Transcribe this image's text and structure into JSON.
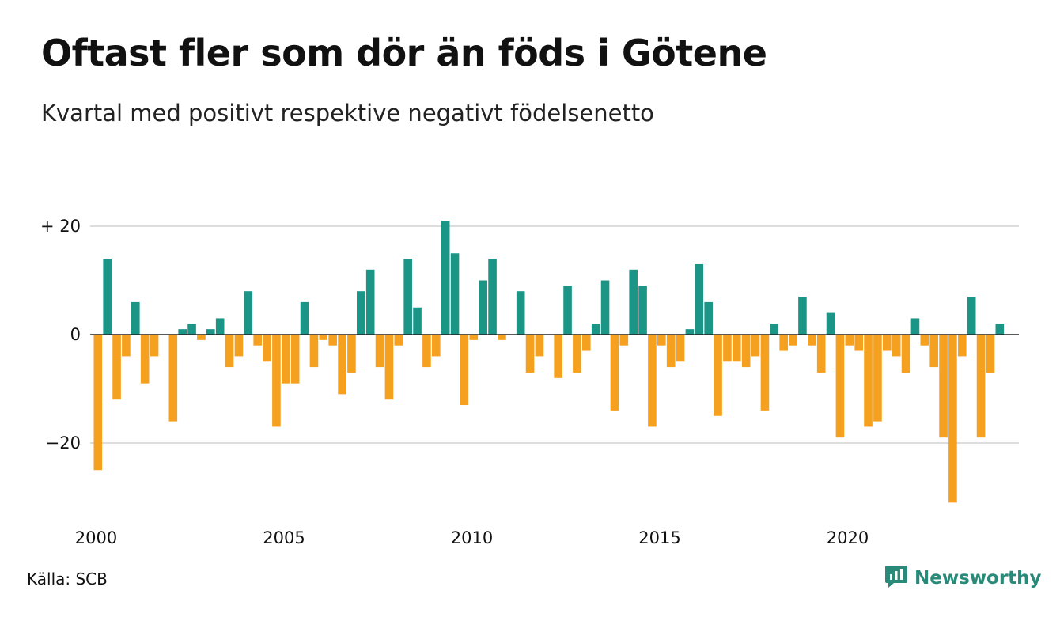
{
  "title": "Oftast fler som dör än föds i Götene",
  "subtitle": "Kvartal med positivt respektive negativt födelsenetto",
  "source": "Källa: SCB",
  "brand": "Newsworthy",
  "colors": {
    "positive": "#1b9585",
    "negative": "#f5a01e",
    "grid": "#dddddd",
    "brand": "#2a8a7a"
  },
  "chart_data": {
    "type": "bar",
    "x_start": 2000,
    "x_step": 0.25,
    "xticks": [
      {
        "value": 2000,
        "label": "2000"
      },
      {
        "value": 2005,
        "label": "2005"
      },
      {
        "value": 2010,
        "label": "2010"
      },
      {
        "value": 2015,
        "label": "2015"
      },
      {
        "value": 2020,
        "label": "2020"
      }
    ],
    "yticks": [
      {
        "value": 20,
        "label": "+ 20"
      },
      {
        "value": 0,
        "label": "0"
      },
      {
        "value": -20,
        "label": "−20"
      }
    ],
    "ylim": [
      -32,
      22
    ],
    "grid": true,
    "values": [
      -25,
      14,
      -12,
      -4,
      6,
      -9,
      -4,
      0,
      -16,
      1,
      2,
      -1,
      1,
      3,
      -6,
      -4,
      8,
      -2,
      -5,
      -17,
      -9,
      -9,
      6,
      -6,
      -1,
      -2,
      -11,
      -7,
      8,
      12,
      -6,
      -12,
      -2,
      14,
      5,
      -6,
      -4,
      21,
      15,
      -13,
      -1,
      10,
      14,
      -1,
      0,
      8,
      -7,
      -4,
      0,
      -8,
      9,
      -7,
      -3,
      2,
      10,
      -14,
      -2,
      12,
      9,
      -17,
      -2,
      -6,
      -5,
      1,
      13,
      6,
      -15,
      -5,
      -5,
      -6,
      -4,
      -14,
      2,
      -3,
      -2,
      7,
      -2,
      -7,
      4,
      -19,
      -2,
      -3,
      -17,
      -16,
      -3,
      -4,
      -7,
      3,
      -2,
      -6,
      -19,
      -31,
      -4,
      7,
      -19,
      -7,
      2
    ]
  }
}
